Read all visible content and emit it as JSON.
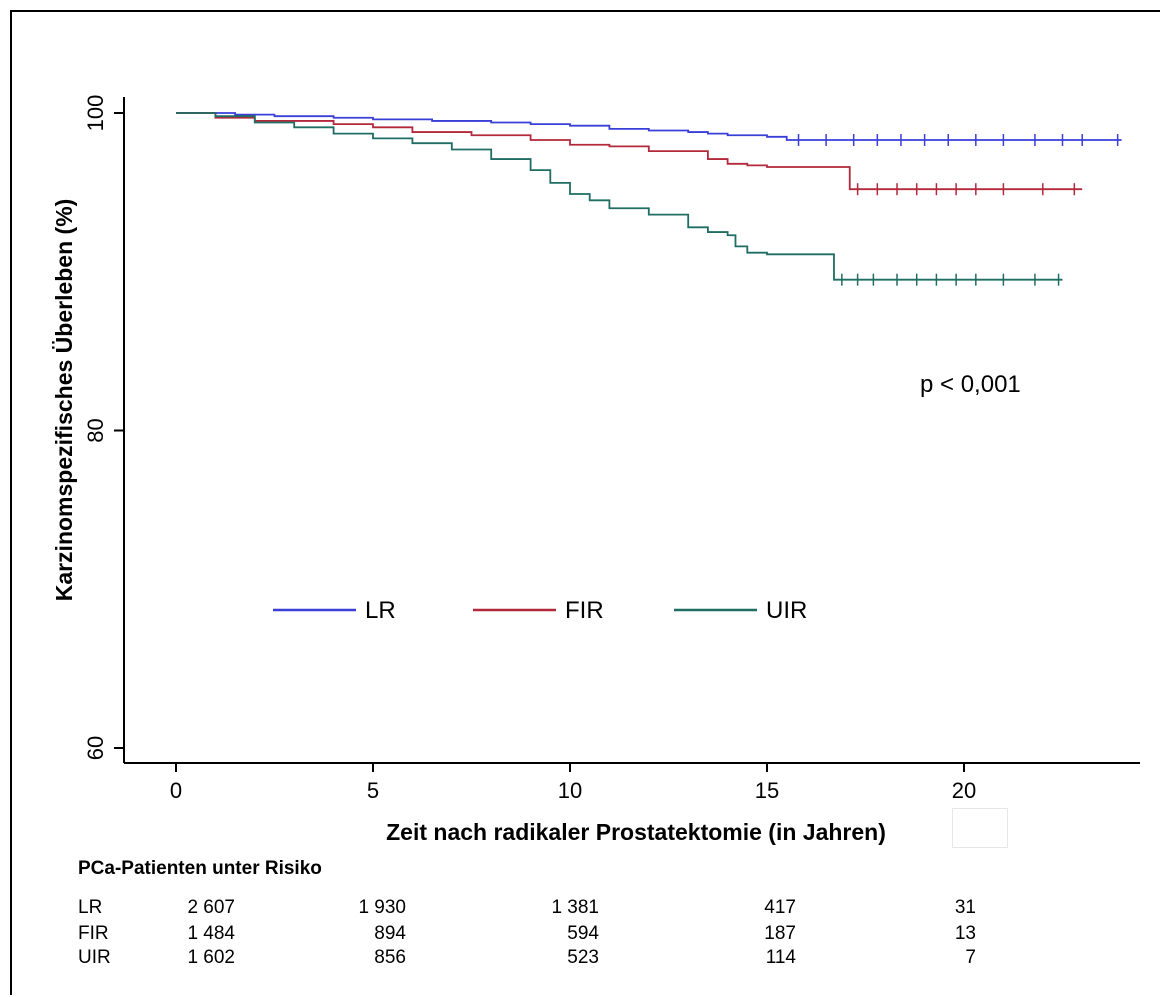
{
  "chart_data": {
    "type": "line",
    "subtype": "kaplan-meier",
    "xlabel": "Zeit nach radikaler Prostatektomie (in Jahren)",
    "ylabel": "Karzinomspezifisches Überleben (%)",
    "xlim": [
      0,
      24
    ],
    "ylim": [
      60,
      100
    ],
    "xticks": [
      0,
      5,
      10,
      15,
      20
    ],
    "yticks": [
      60,
      80,
      100
    ],
    "grid": false,
    "legend_position": "center-left, inside plot",
    "annotation": "p < 0,001",
    "series": [
      {
        "name": "LR",
        "color": "#3a3fd8",
        "x": [
          0,
          1.5,
          2.5,
          4,
          5,
          6.5,
          8,
          9,
          10,
          11,
          12,
          13,
          13.5,
          14,
          15,
          15.5,
          17,
          18,
          20,
          22,
          24
        ],
        "y": [
          100,
          99.9,
          99.8,
          99.7,
          99.6,
          99.5,
          99.4,
          99.3,
          99.2,
          99.0,
          98.9,
          98.8,
          98.7,
          98.6,
          98.5,
          98.3,
          98.3,
          98.3,
          98.3,
          98.3,
          98.3
        ],
        "censor_x": [
          15.8,
          16.5,
          17.2,
          17.8,
          18.4,
          19.0,
          19.6,
          20.3,
          21.0,
          21.8,
          22.5,
          23.0,
          23.9
        ]
      },
      {
        "name": "FIR",
        "color": "#b3283a",
        "x": [
          0,
          1,
          2,
          4,
          5,
          6,
          7.5,
          9,
          10,
          11,
          12,
          13.5,
          14,
          14.5,
          15,
          17,
          17.1,
          18,
          20,
          22,
          23
        ],
        "y": [
          100,
          99.7,
          99.5,
          99.3,
          99.1,
          98.8,
          98.6,
          98.3,
          98.0,
          97.9,
          97.6,
          97.1,
          96.8,
          96.7,
          96.6,
          96.6,
          95.2,
          95.2,
          95.2,
          95.2,
          95.2
        ],
        "censor_x": [
          17.3,
          17.8,
          18.3,
          18.8,
          19.3,
          19.8,
          20.3,
          21.0,
          22.0,
          22.8
        ]
      },
      {
        "name": "UIR",
        "color": "#1f6d63",
        "x": [
          0,
          1,
          2,
          3,
          4,
          5,
          6,
          7,
          8,
          9,
          9.5,
          10,
          10.5,
          11,
          12,
          13,
          13.5,
          14,
          14.2,
          14.5,
          15,
          16,
          16.6,
          16.7,
          18,
          20,
          22.5
        ],
        "y": [
          100,
          99.8,
          99.4,
          99.1,
          98.7,
          98.4,
          98.1,
          97.7,
          97.1,
          96.4,
          95.6,
          94.9,
          94.5,
          94.0,
          93.6,
          92.8,
          92.5,
          92.3,
          91.6,
          91.2,
          91.1,
          91.1,
          91.1,
          89.5,
          89.5,
          89.5,
          89.5
        ],
        "censor_x": [
          16.9,
          17.3,
          17.7,
          18.3,
          18.8,
          19.3,
          19.8,
          20.3,
          21.0,
          21.8,
          22.4
        ]
      }
    ]
  },
  "legend": {
    "items": [
      "LR",
      "FIR",
      "UIR"
    ]
  },
  "risk_table": {
    "title": "PCa-Patienten unter Risiko",
    "rows": [
      {
        "label": "LR",
        "values": [
          "2 607",
          "1 930",
          "1 381",
          "417",
          "31"
        ]
      },
      {
        "label": "FIR",
        "values": [
          "1 484",
          "894",
          "594",
          "187",
          "13"
        ]
      },
      {
        "label": "UIR",
        "values": [
          "1 602",
          "856",
          "523",
          "114",
          "7"
        ]
      }
    ]
  }
}
